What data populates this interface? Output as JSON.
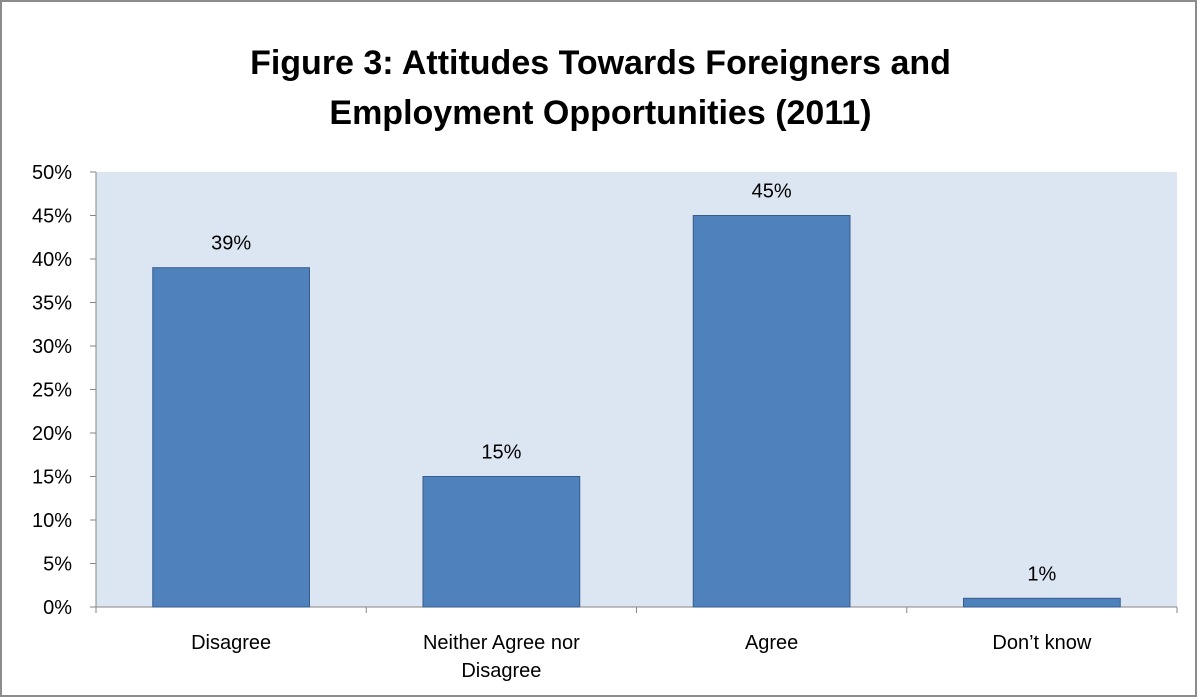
{
  "chart_data": {
    "type": "bar",
    "title_lines": [
      "Figure 3: Attitudes Towards Foreigners and",
      "Employment Opportunities (2011)"
    ],
    "categories": [
      [
        "Disagree"
      ],
      [
        "Neither Agree nor",
        "Disagree"
      ],
      [
        "Agree"
      ],
      [
        "Don’t know"
      ]
    ],
    "values": [
      39,
      15,
      45,
      1
    ],
    "value_labels": [
      "39%",
      "15%",
      "45%",
      "1%"
    ],
    "ylim": [
      0,
      50
    ],
    "y_ticks": [
      0,
      5,
      10,
      15,
      20,
      25,
      30,
      35,
      40,
      45,
      50
    ],
    "y_tick_labels": [
      "0%",
      "5%",
      "10%",
      "15%",
      "20%",
      "25%",
      "30%",
      "35%",
      "40%",
      "45%",
      "50%"
    ],
    "xlabel": "",
    "ylabel": "",
    "grid": false,
    "legend": "none",
    "colors": {
      "bar_fill": "#4f81bd",
      "bar_stroke": "#385d8a",
      "plot_background": "#dce6f2",
      "axis": "#868686",
      "frame_border": "#8c8c8c"
    }
  }
}
